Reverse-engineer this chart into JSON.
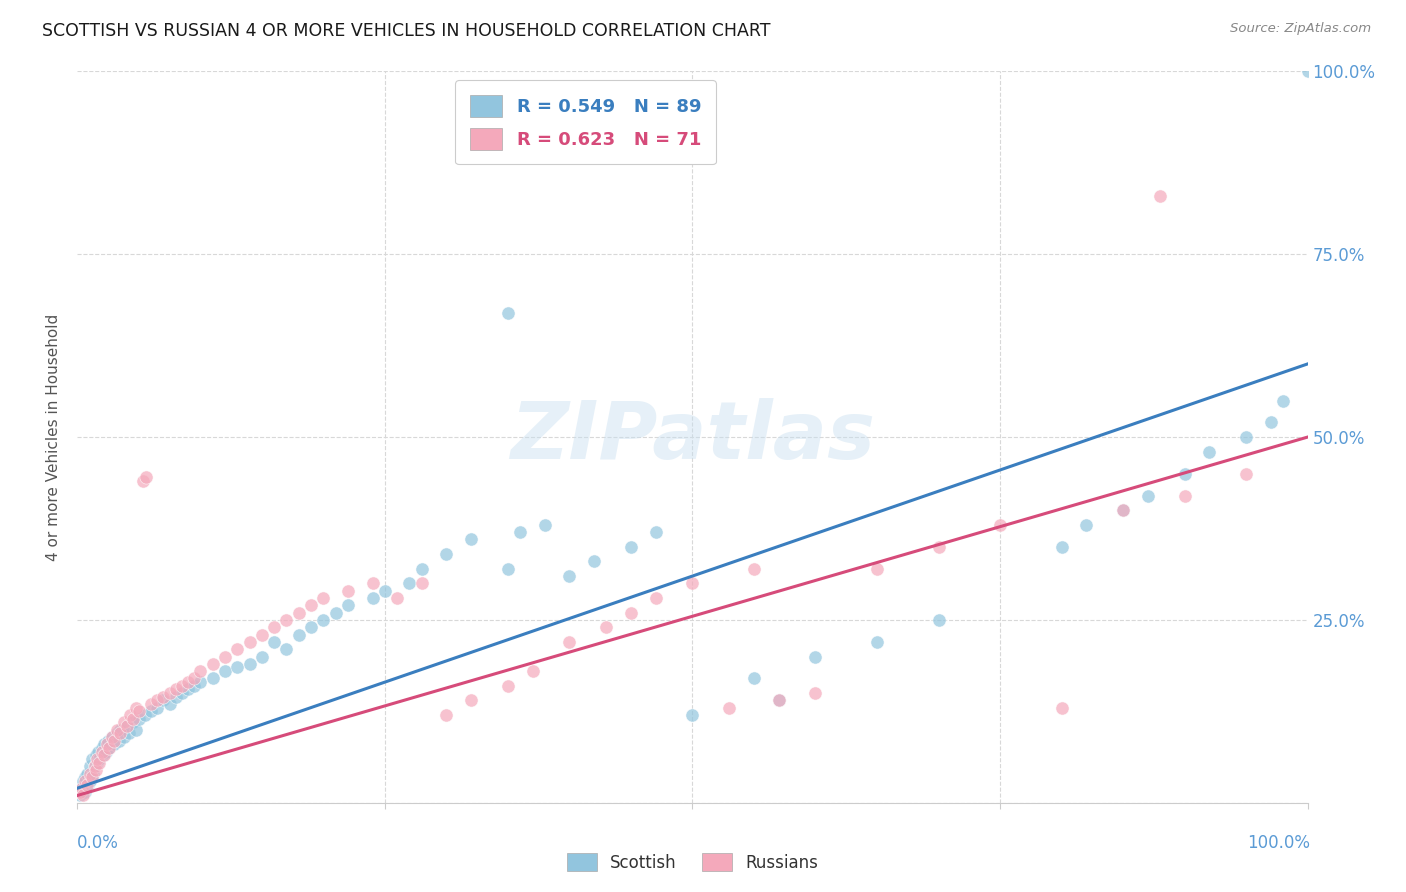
{
  "title": "SCOTTISH VS RUSSIAN 4 OR MORE VEHICLES IN HOUSEHOLD CORRELATION CHART",
  "source": "Source: ZipAtlas.com",
  "ylabel": "4 or more Vehicles in Household",
  "watermark": "ZIPatlas",
  "legend_scottish_r": "R = 0.549",
  "legend_scottish_n": "N = 89",
  "legend_russian_r": "R = 0.623",
  "legend_russian_n": "N = 71",
  "scottish_color": "#92c5de",
  "russian_color": "#f4a9bb",
  "scottish_line_color": "#3a7ebf",
  "russian_line_color": "#d64b7a",
  "background_color": "#ffffff",
  "grid_color": "#d8d8d8",
  "axis_label_color": "#5b9bd5",
  "xlim": [
    0,
    100
  ],
  "ylim": [
    0,
    100
  ],
  "yticks": [
    0,
    25,
    50,
    75,
    100
  ],
  "ytick_labels": [
    "",
    "25.0%",
    "50.0%",
    "75.0%",
    "100.0%"
  ],
  "scottish_x": [
    0.2,
    0.3,
    0.4,
    0.5,
    0.5,
    0.6,
    0.6,
    0.7,
    0.8,
    0.9,
    1.0,
    1.0,
    1.1,
    1.2,
    1.3,
    1.4,
    1.5,
    1.6,
    1.7,
    1.8,
    2.0,
    2.1,
    2.2,
    2.3,
    2.5,
    2.6,
    2.8,
    3.0,
    3.2,
    3.4,
    3.5,
    3.8,
    4.0,
    4.2,
    4.5,
    4.8,
    5.0,
    5.5,
    6.0,
    6.5,
    7.0,
    7.5,
    8.0,
    8.5,
    9.0,
    9.5,
    10.0,
    11.0,
    12.0,
    13.0,
    14.0,
    15.0,
    16.0,
    17.0,
    18.0,
    19.0,
    20.0,
    21.0,
    22.0,
    24.0,
    25.0,
    27.0,
    28.0,
    30.0,
    32.0,
    35.0,
    35.0,
    36.0,
    38.0,
    40.0,
    42.0,
    45.0,
    47.0,
    50.0,
    55.0,
    57.0,
    60.0,
    65.0,
    70.0,
    80.0,
    82.0,
    85.0,
    87.0,
    90.0,
    92.0,
    95.0,
    97.0,
    98.0,
    100.0
  ],
  "scottish_y": [
    1.0,
    1.5,
    2.0,
    2.5,
    3.0,
    1.5,
    3.5,
    2.0,
    4.0,
    2.5,
    3.0,
    5.0,
    3.5,
    6.0,
    4.0,
    5.0,
    6.5,
    5.5,
    7.0,
    6.0,
    7.5,
    6.5,
    8.0,
    7.0,
    8.5,
    7.5,
    9.0,
    8.0,
    9.5,
    8.5,
    10.0,
    9.0,
    10.5,
    9.5,
    11.0,
    10.0,
    11.5,
    12.0,
    12.5,
    13.0,
    14.0,
    13.5,
    14.5,
    15.0,
    15.5,
    16.0,
    16.5,
    17.0,
    18.0,
    18.5,
    19.0,
    20.0,
    22.0,
    21.0,
    23.0,
    24.0,
    25.0,
    26.0,
    27.0,
    28.0,
    29.0,
    30.0,
    32.0,
    34.0,
    36.0,
    32.0,
    67.0,
    37.0,
    38.0,
    31.0,
    33.0,
    35.0,
    37.0,
    12.0,
    17.0,
    14.0,
    20.0,
    22.0,
    25.0,
    35.0,
    38.0,
    40.0,
    42.0,
    45.0,
    48.0,
    50.0,
    52.0,
    55.0,
    100.0
  ],
  "russian_x": [
    0.2,
    0.4,
    0.5,
    0.6,
    0.8,
    1.0,
    1.2,
    1.4,
    1.5,
    1.6,
    1.8,
    2.0,
    2.2,
    2.4,
    2.6,
    2.8,
    3.0,
    3.2,
    3.5,
    3.8,
    4.0,
    4.3,
    4.5,
    4.8,
    5.0,
    5.3,
    5.6,
    6.0,
    6.5,
    7.0,
    7.5,
    8.0,
    8.5,
    9.0,
    9.5,
    10.0,
    11.0,
    12.0,
    13.0,
    14.0,
    15.0,
    16.0,
    17.0,
    18.0,
    19.0,
    20.0,
    22.0,
    24.0,
    26.0,
    28.0,
    30.0,
    32.0,
    35.0,
    37.0,
    40.0,
    43.0,
    45.0,
    47.0,
    50.0,
    53.0,
    55.0,
    57.0,
    60.0,
    65.0,
    70.0,
    75.0,
    80.0,
    85.0,
    88.0,
    90.0,
    95.0
  ],
  "russian_y": [
    1.5,
    2.0,
    1.0,
    3.0,
    2.5,
    4.0,
    3.5,
    5.0,
    4.5,
    6.0,
    5.5,
    7.0,
    6.5,
    8.0,
    7.5,
    9.0,
    8.5,
    10.0,
    9.5,
    11.0,
    10.5,
    12.0,
    11.5,
    13.0,
    12.5,
    44.0,
    44.5,
    13.5,
    14.0,
    14.5,
    15.0,
    15.5,
    16.0,
    16.5,
    17.0,
    18.0,
    19.0,
    20.0,
    21.0,
    22.0,
    23.0,
    24.0,
    25.0,
    26.0,
    27.0,
    28.0,
    29.0,
    30.0,
    28.0,
    30.0,
    12.0,
    14.0,
    16.0,
    18.0,
    22.0,
    24.0,
    26.0,
    28.0,
    30.0,
    13.0,
    32.0,
    14.0,
    15.0,
    32.0,
    35.0,
    38.0,
    13.0,
    40.0,
    83.0,
    42.0,
    45.0
  ],
  "scottish_line_x0": 0,
  "scottish_line_y0": 2,
  "scottish_line_x1": 100,
  "scottish_line_y1": 60,
  "russian_line_x0": 0,
  "russian_line_y0": 1,
  "russian_line_x1": 100,
  "russian_line_y1": 50
}
